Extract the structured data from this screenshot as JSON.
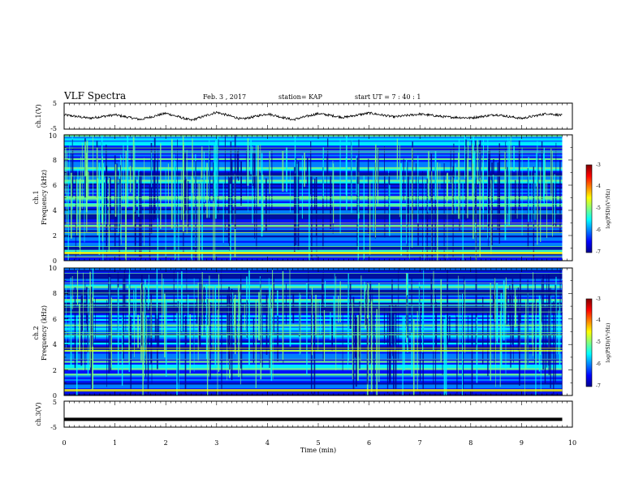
{
  "header": {
    "title": "VLF Spectra",
    "date": "Feb. 3 , 2017",
    "station": "station= KAP",
    "start": "start UT = 7 : 40 : 1"
  },
  "colors": {
    "jet": [
      "#00008f",
      "#0000ff",
      "#0080ff",
      "#00ffff",
      "#80ff80",
      "#ffff00",
      "#ff8000",
      "#ff0000",
      "#800000"
    ]
  },
  "chart_data": [
    {
      "type": "line",
      "name": "ch1-waveform",
      "ylabel": "ch.1(V)",
      "ylim": [
        -5,
        5
      ],
      "yticks": [
        "5",
        "-5"
      ],
      "xlim": [
        0,
        10
      ],
      "x": [
        0,
        0.5,
        1,
        1.5,
        2,
        2.5,
        3,
        3.5,
        4,
        4.5,
        5,
        5.5,
        6,
        6.5,
        7,
        7.5,
        8,
        8.5,
        9,
        9.5,
        9.8
      ],
      "y": [
        0.5,
        -0.8,
        0.5,
        -1.3,
        1.1,
        -1.6,
        1.5,
        -1.2,
        0.9,
        -1.4,
        1.0,
        -0.5,
        1.2,
        -0.3,
        0.8,
        -0.3,
        -0.7,
        0.6,
        -0.9,
        1.0,
        0.3
      ]
    },
    {
      "type": "heatmap",
      "name": "ch1-spectrogram",
      "ylabel_top": "ch.1",
      "ylabel_bottom": "Frequency (kHz)",
      "ylim": [
        0,
        10
      ],
      "yticks": [
        "0",
        "2",
        "4",
        "6",
        "8",
        "10"
      ],
      "colorbar": {
        "label": "log(PSD)(V²/Hz)",
        "ticks": [
          "-3",
          "-4",
          "-5",
          "-6",
          "-7"
        ],
        "range": [
          -7,
          -3
        ]
      }
    },
    {
      "type": "heatmap",
      "name": "ch2-spectrogram",
      "ylabel_top": "ch.2",
      "ylabel_bottom": "Frequency (kHz)",
      "ylim": [
        0,
        10
      ],
      "yticks": [
        "0",
        "2",
        "4",
        "6",
        "8",
        "10"
      ],
      "colorbar": {
        "label": "log(PSD)(V²/Hz)",
        "ticks": [
          "-3",
          "-4",
          "-5",
          "-6",
          "-7"
        ],
        "range": [
          -7,
          -3
        ]
      }
    },
    {
      "type": "line",
      "name": "ch3-waveform",
      "ylabel": "ch.3(V)",
      "ylim": [
        -5,
        5
      ],
      "yticks": [
        "5",
        "-5"
      ],
      "x": [
        0,
        9.8
      ],
      "y": [
        -2,
        -2
      ]
    }
  ],
  "xaxis": {
    "label": "Time (min)",
    "range": [
      0,
      10
    ],
    "ticks": [
      "0",
      "1",
      "2",
      "3",
      "4",
      "5",
      "6",
      "7",
      "8",
      "9",
      "10"
    ]
  }
}
